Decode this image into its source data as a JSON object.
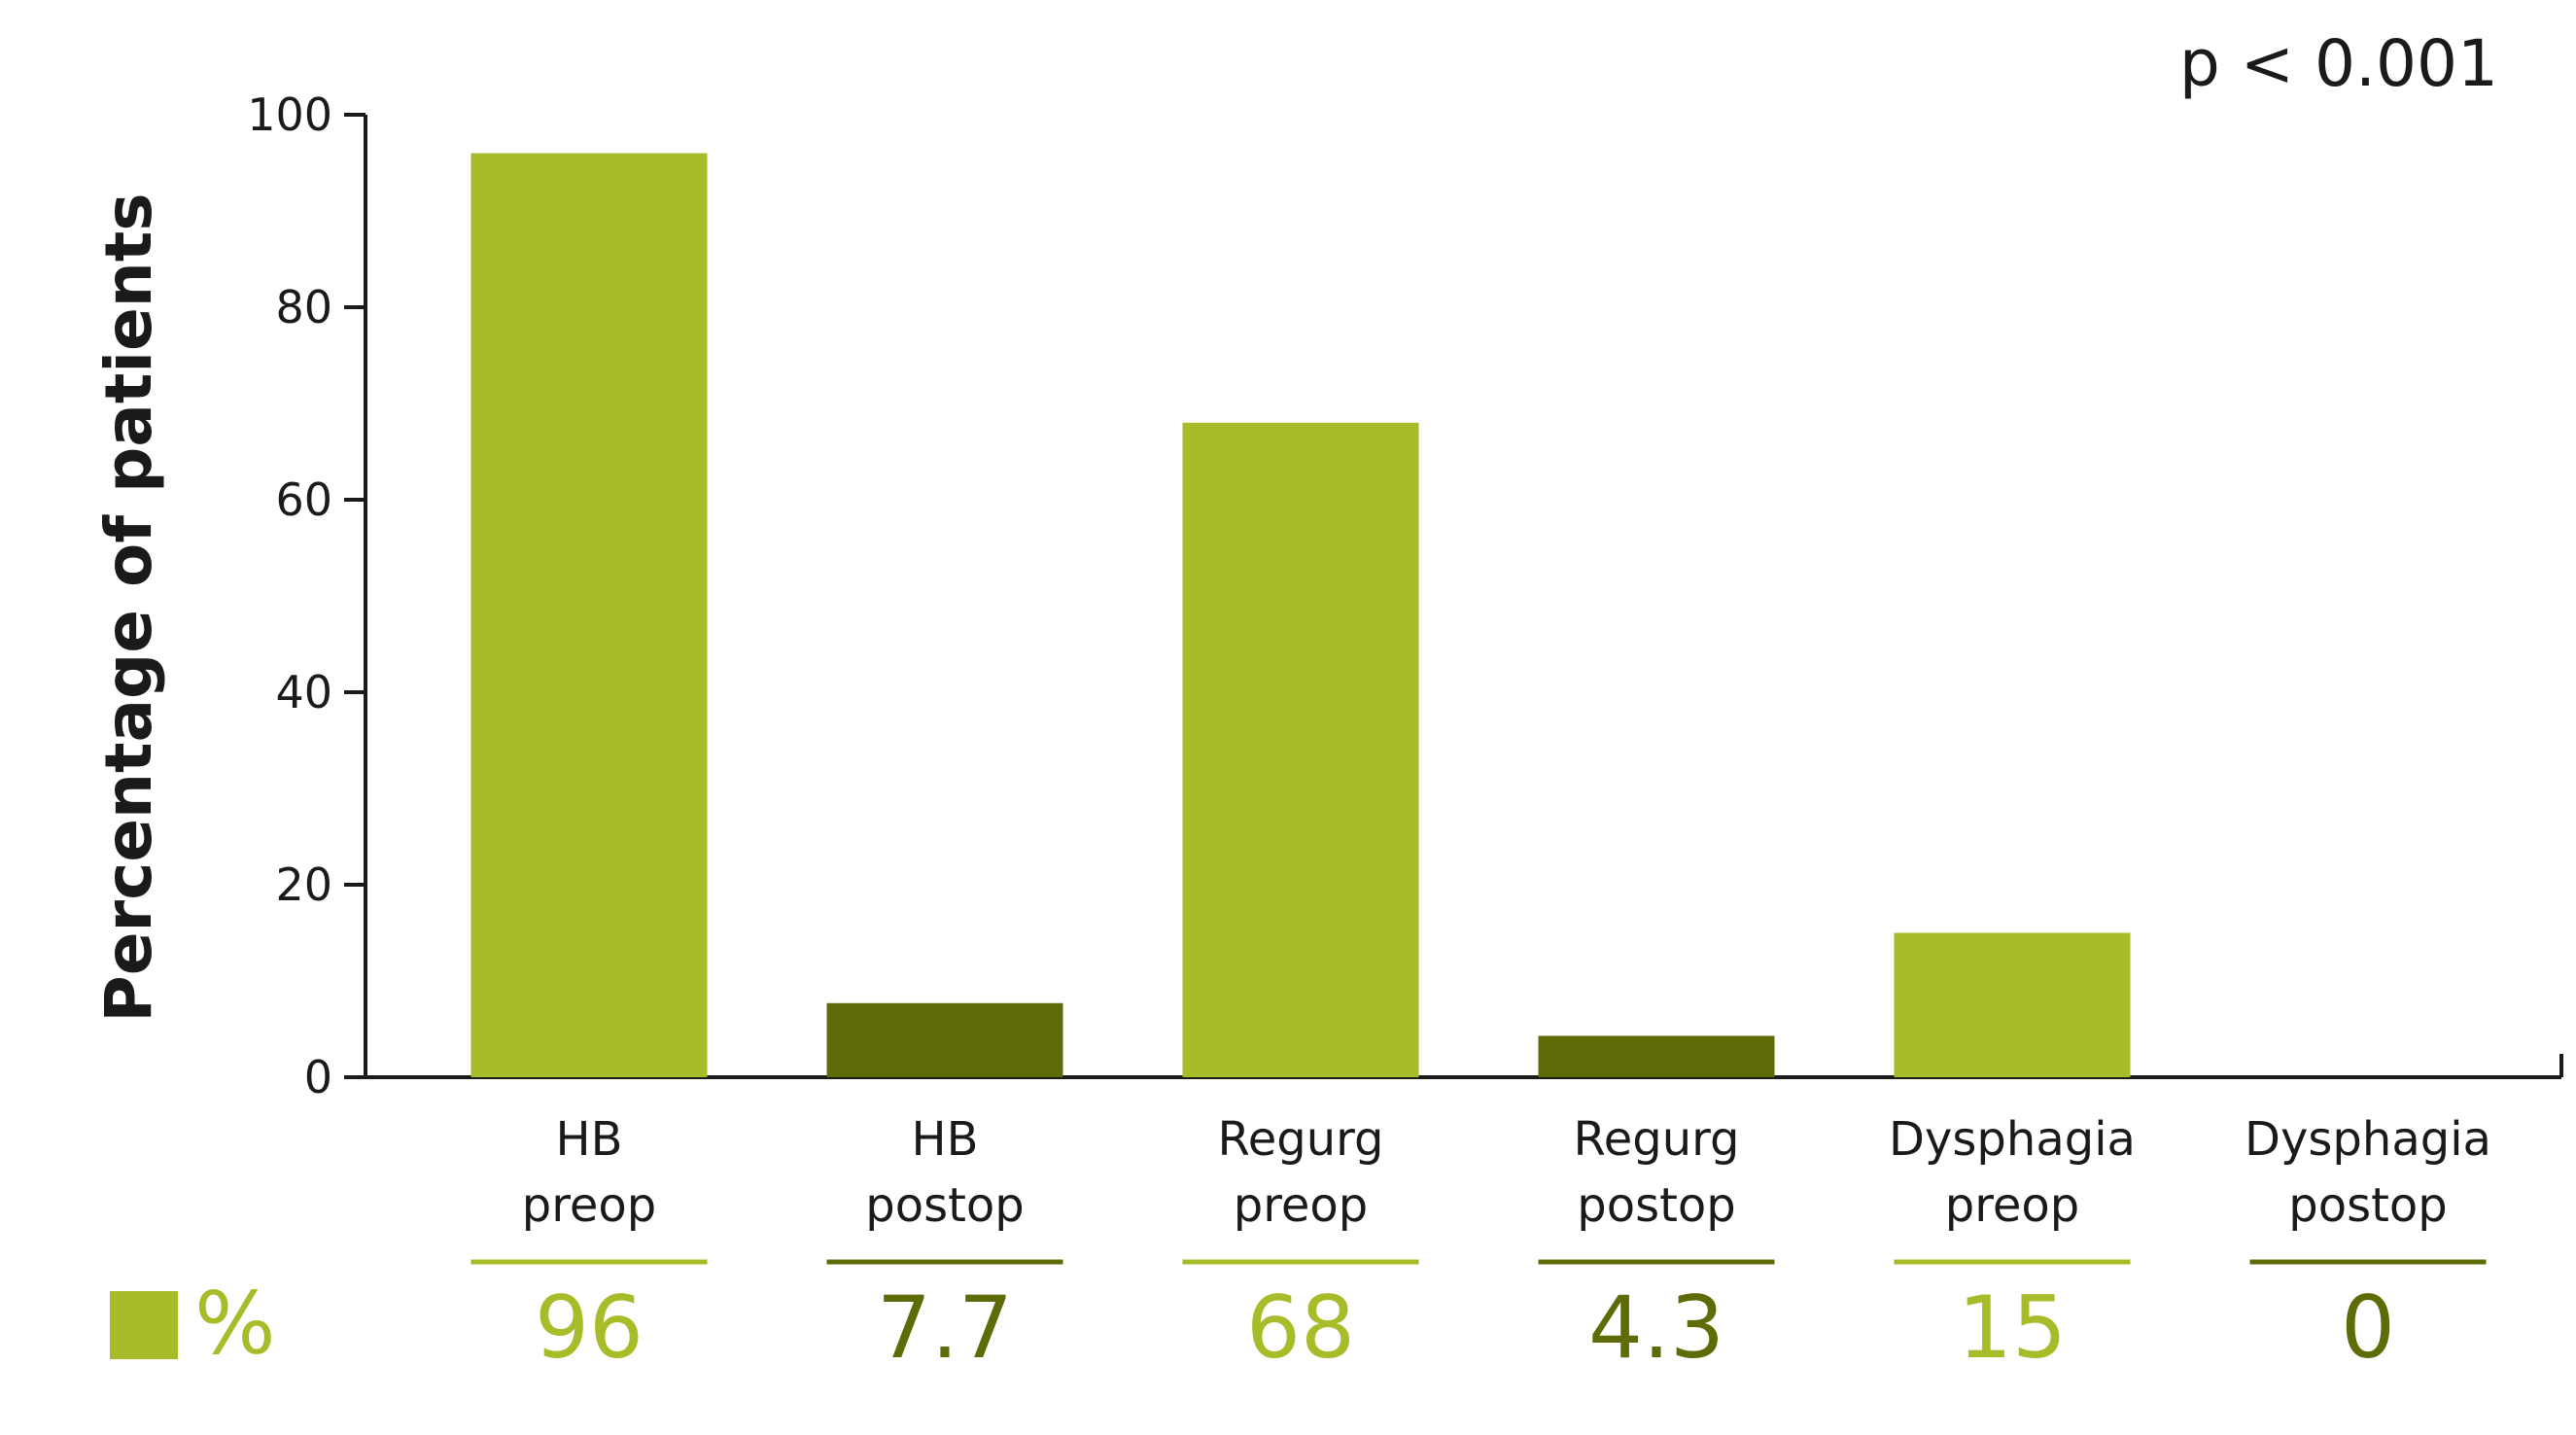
{
  "chart_data": {
    "type": "bar",
    "ylabel": "Percentage of patients",
    "annotation": "p < 0.001",
    "ylim": [
      0,
      100
    ],
    "yticks": [
      "0",
      "20",
      "40",
      "60",
      "80",
      "100"
    ],
    "categories": [
      [
        "HB",
        "preop"
      ],
      [
        "HB",
        "postop"
      ],
      [
        "Regurg",
        "preop"
      ],
      [
        "Regurg",
        "postop"
      ],
      [
        "Dysphagia",
        "preop"
      ],
      [
        "Dysphagia",
        "postop"
      ]
    ],
    "values": [
      96,
      7.7,
      68,
      4.3,
      15,
      0
    ],
    "value_labels": [
      "96",
      "7.7",
      "68",
      "4.3",
      "15",
      "0"
    ],
    "bar_colors": [
      "#a8bb29",
      "#5e6b06",
      "#a8bb29",
      "#5e6b06",
      "#a8bb29",
      "#5e6b06"
    ],
    "table_legend_symbol": "%",
    "legend_color": "#a8bb29",
    "grid": false
  }
}
